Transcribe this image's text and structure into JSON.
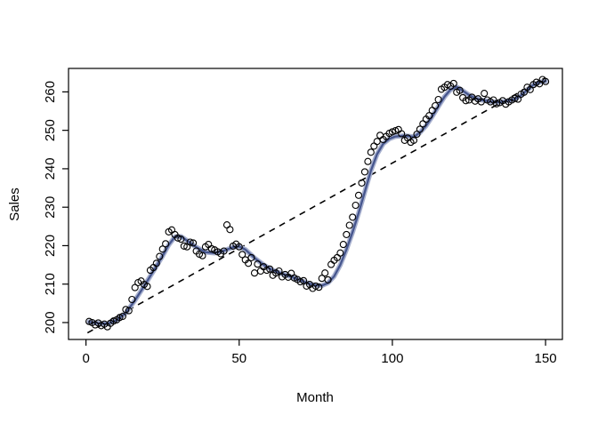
{
  "chart_data": {
    "type": "scatter",
    "title": "",
    "xlabel": "Month",
    "ylabel": "Sales",
    "xlim": [
      -5.7,
      155.5
    ],
    "ylim": [
      195.6,
      266.1
    ],
    "x_ticks": [
      0,
      50,
      100,
      150
    ],
    "y_ticks": [
      200,
      210,
      220,
      230,
      240,
      250,
      260
    ],
    "grid": false,
    "legend_position": "none",
    "point_style": {
      "shape": "open-circle",
      "radius": 3.5,
      "stroke": "#000000",
      "stroke_width": 1.1,
      "fill": "none"
    },
    "points": [
      [
        1,
        200.3
      ],
      [
        2,
        200.0
      ],
      [
        3,
        199.4
      ],
      [
        4,
        199.9
      ],
      [
        5,
        199.2
      ],
      [
        6,
        199.6
      ],
      [
        7,
        198.9
      ],
      [
        8,
        199.8
      ],
      [
        9,
        200.4
      ],
      [
        10,
        200.7
      ],
      [
        11,
        201.3
      ],
      [
        12,
        201.6
      ],
      [
        13,
        203.4
      ],
      [
        14,
        203.1
      ],
      [
        15,
        206.0
      ],
      [
        16,
        209.1
      ],
      [
        17,
        210.4
      ],
      [
        18,
        210.8
      ],
      [
        19,
        209.9
      ],
      [
        20,
        209.4
      ],
      [
        21,
        213.6
      ],
      [
        22,
        214.3
      ],
      [
        23,
        215.4
      ],
      [
        24,
        217.2
      ],
      [
        25,
        219.1
      ],
      [
        26,
        220.5
      ],
      [
        27,
        223.6
      ],
      [
        28,
        224.1
      ],
      [
        29,
        222.9
      ],
      [
        30,
        222.0
      ],
      [
        31,
        221.7
      ],
      [
        32,
        219.9
      ],
      [
        33,
        219.7
      ],
      [
        34,
        220.9
      ],
      [
        35,
        220.7
      ],
      [
        36,
        218.6
      ],
      [
        37,
        217.8
      ],
      [
        38,
        217.4
      ],
      [
        39,
        219.7
      ],
      [
        40,
        220.3
      ],
      [
        41,
        219.2
      ],
      [
        42,
        218.9
      ],
      [
        43,
        218.4
      ],
      [
        44,
        217.9
      ],
      [
        45,
        218.6
      ],
      [
        46,
        225.4
      ],
      [
        47,
        224.2
      ],
      [
        48,
        219.9
      ],
      [
        49,
        220.4
      ],
      [
        50,
        219.7
      ],
      [
        51,
        217.7
      ],
      [
        52,
        216.3
      ],
      [
        53,
        215.4
      ],
      [
        54,
        216.9
      ],
      [
        55,
        212.9
      ],
      [
        56,
        215.2
      ],
      [
        57,
        213.4
      ],
      [
        58,
        214.5
      ],
      [
        59,
        213.6
      ],
      [
        60,
        213.9
      ],
      [
        61,
        212.3
      ],
      [
        62,
        212.9
      ],
      [
        63,
        213.4
      ],
      [
        64,
        211.9
      ],
      [
        65,
        212.5
      ],
      [
        66,
        211.8
      ],
      [
        67,
        212.8
      ],
      [
        68,
        211.6
      ],
      [
        69,
        211.2
      ],
      [
        70,
        210.6
      ],
      [
        71,
        210.9
      ],
      [
        72,
        209.5
      ],
      [
        73,
        209.9
      ],
      [
        74,
        208.9
      ],
      [
        75,
        209.5
      ],
      [
        76,
        209.2
      ],
      [
        77,
        211.5
      ],
      [
        78,
        212.9
      ],
      [
        79,
        211.1
      ],
      [
        80,
        215.1
      ],
      [
        81,
        216.2
      ],
      [
        82,
        216.9
      ],
      [
        83,
        218.1
      ],
      [
        84,
        220.3
      ],
      [
        85,
        222.9
      ],
      [
        86,
        225.3
      ],
      [
        87,
        227.4
      ],
      [
        88,
        230.5
      ],
      [
        89,
        233.1
      ],
      [
        90,
        236.3
      ],
      [
        91,
        239.2
      ],
      [
        92,
        241.9
      ],
      [
        93,
        244.3
      ],
      [
        94,
        245.9
      ],
      [
        95,
        247.1
      ],
      [
        96,
        248.7
      ],
      [
        97,
        247.6
      ],
      [
        98,
        248.4
      ],
      [
        99,
        249.2
      ],
      [
        100,
        249.6
      ],
      [
        101,
        249.9
      ],
      [
        102,
        250.2
      ],
      [
        103,
        249.1
      ],
      [
        104,
        247.4
      ],
      [
        105,
        248.0
      ],
      [
        106,
        246.9
      ],
      [
        107,
        247.4
      ],
      [
        108,
        249.0
      ],
      [
        109,
        250.3
      ],
      [
        110,
        251.7
      ],
      [
        111,
        252.9
      ],
      [
        112,
        253.8
      ],
      [
        113,
        255.2
      ],
      [
        114,
        256.4
      ],
      [
        115,
        258.0
      ],
      [
        116,
        260.7
      ],
      [
        117,
        261.2
      ],
      [
        118,
        261.9
      ],
      [
        119,
        261.5
      ],
      [
        120,
        262.2
      ],
      [
        121,
        259.9
      ],
      [
        122,
        260.4
      ],
      [
        123,
        258.5
      ],
      [
        124,
        257.7
      ],
      [
        125,
        257.9
      ],
      [
        126,
        258.6
      ],
      [
        127,
        257.6
      ],
      [
        128,
        258.2
      ],
      [
        129,
        257.4
      ],
      [
        130,
        259.6
      ],
      [
        131,
        257.9
      ],
      [
        132,
        257.4
      ],
      [
        133,
        257.9
      ],
      [
        134,
        256.9
      ],
      [
        135,
        257.2
      ],
      [
        136,
        257.7
      ],
      [
        137,
        256.8
      ],
      [
        138,
        257.4
      ],
      [
        139,
        257.9
      ],
      [
        140,
        258.3
      ],
      [
        141,
        258.1
      ],
      [
        142,
        259.4
      ],
      [
        143,
        259.9
      ],
      [
        144,
        261.2
      ],
      [
        145,
        260.6
      ],
      [
        146,
        261.9
      ],
      [
        147,
        262.5
      ],
      [
        148,
        262.1
      ],
      [
        149,
        263.2
      ],
      [
        150,
        262.7
      ]
    ],
    "series": [
      {
        "name": "loess-smooth",
        "type": "line",
        "color": "#46568e",
        "halo_color": "#a8b1cf",
        "width": 2.3,
        "halo_width": 5.5,
        "points": [
          [
            1,
            200.2
          ],
          [
            4,
            199.8
          ],
          [
            7,
            199.7
          ],
          [
            10,
            200.6
          ],
          [
            13,
            202.5
          ],
          [
            16,
            205.8
          ],
          [
            19,
            209.5
          ],
          [
            22,
            213.4
          ],
          [
            25,
            217.3
          ],
          [
            27,
            220.2
          ],
          [
            29,
            222.3
          ],
          [
            31,
            222.4
          ],
          [
            33,
            221.3
          ],
          [
            36,
            219.6
          ],
          [
            39,
            218.3
          ],
          [
            42,
            218.1
          ],
          [
            45,
            218.7
          ],
          [
            48,
            219.6
          ],
          [
            50,
            219.8
          ],
          [
            52,
            219.0
          ],
          [
            55,
            216.8
          ],
          [
            58,
            215.0
          ],
          [
            61,
            213.6
          ],
          [
            64,
            212.7
          ],
          [
            67,
            211.9
          ],
          [
            70,
            211.0
          ],
          [
            73,
            210.1
          ],
          [
            75,
            209.7
          ],
          [
            77,
            209.6
          ],
          [
            79,
            210.3
          ],
          [
            81,
            212.0
          ],
          [
            83,
            215.0
          ],
          [
            85,
            219.0
          ],
          [
            87,
            223.5
          ],
          [
            89,
            228.5
          ],
          [
            91,
            234.0
          ],
          [
            93,
            239.5
          ],
          [
            95,
            243.8
          ],
          [
            97,
            246.5
          ],
          [
            99,
            247.8
          ],
          [
            101,
            248.4
          ],
          [
            104,
            248.6
          ],
          [
            107,
            248.3
          ],
          [
            109,
            249.4
          ],
          [
            111,
            251.2
          ],
          [
            113,
            253.6
          ],
          [
            115,
            256.2
          ],
          [
            117,
            258.7
          ],
          [
            119,
            260.6
          ],
          [
            121,
            261.3
          ],
          [
            123,
            260.3
          ],
          [
            125,
            259.2
          ],
          [
            127,
            258.4
          ],
          [
            129,
            257.9
          ],
          [
            132,
            257.5
          ],
          [
            135,
            257.3
          ],
          [
            138,
            257.7
          ],
          [
            140,
            258.1
          ],
          [
            142,
            259.1
          ],
          [
            144,
            260.5
          ],
          [
            146,
            261.8
          ],
          [
            148,
            262.5
          ],
          [
            150,
            262.8
          ]
        ]
      },
      {
        "name": "linear-trend",
        "type": "dashed-line",
        "color": "#000000",
        "width": 1.6,
        "dash": "7,6",
        "points": [
          [
            0.5,
            197.3
          ],
          [
            150,
            263.7
          ]
        ]
      }
    ],
    "axis_color": "#000000",
    "background": "#ffffff"
  }
}
